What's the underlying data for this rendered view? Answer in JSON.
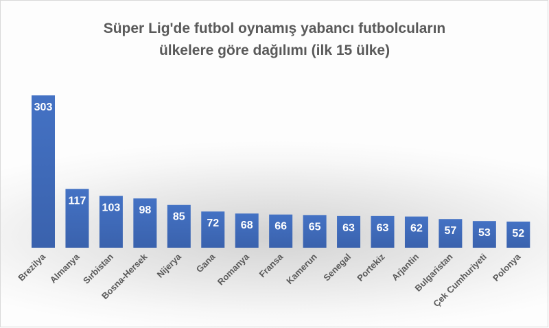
{
  "chart_data": {
    "type": "bar",
    "title_line1": "Süper Lig'de futbol oynamış yabancı futbolcuların",
    "title_line2": "ülkelere göre dağılımı (ilk 15 ülke)",
    "categories": [
      "Brezilya",
      "Almanya",
      "Sırbistan",
      "Bosna-Hersek",
      "Nijerya",
      "Gana",
      "Romanya",
      "Fransa",
      "Kamerun",
      "Senegal",
      "Portekiz",
      "Arjantin",
      "Bulgaristan",
      "Çek Cumhuriyeti",
      "Polonya"
    ],
    "values": [
      303,
      117,
      103,
      98,
      85,
      72,
      68,
      66,
      65,
      63,
      63,
      62,
      57,
      53,
      52
    ],
    "ylim": [
      0,
      303
    ],
    "grid": false,
    "legend": "none",
    "colors": {
      "bar": "#4472c4",
      "bar_dark": "#3a62ad",
      "label": "#ffffff",
      "axis_text": "#595959"
    }
  }
}
